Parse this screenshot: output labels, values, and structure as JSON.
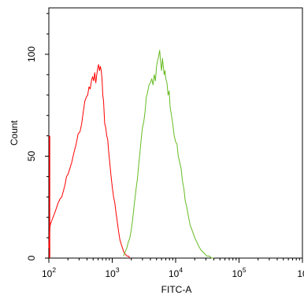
{
  "chart_data": {
    "type": "line",
    "title": "",
    "xlabel": "FITC-A",
    "ylabel": "Count",
    "x_scale": "log",
    "xlim": [
      100,
      1000000
    ],
    "ylim": [
      0,
      135
    ],
    "grid": false,
    "y_ticks": [
      0,
      50,
      100
    ],
    "x_ticks": [
      {
        "base": "10",
        "exp": "2"
      },
      {
        "base": "10",
        "exp": "3"
      },
      {
        "base": "10",
        "exp": "4"
      },
      {
        "base": "10",
        "exp": "5"
      },
      {
        "base": "10",
        "exp": ""
      }
    ],
    "series": [
      {
        "color": "#ff0000",
        "x": [
          100,
          102,
          105,
          110,
          120,
          130,
          140,
          150,
          160,
          170,
          180,
          190,
          200,
          215,
          230,
          250,
          270,
          290,
          310,
          330,
          350,
          370,
          390,
          410,
          430,
          450,
          470,
          490,
          510,
          530,
          550,
          570,
          590,
          610,
          630,
          650,
          670,
          690,
          710,
          730,
          760,
          790,
          820,
          850,
          880,
          920,
          960,
          1000,
          1050,
          1100,
          1150,
          1200,
          1260,
          1320,
          1380,
          1450,
          1520,
          1600,
          1700,
          1800,
          1900
        ],
        "values": [
          5,
          12,
          16,
          18,
          21,
          24,
          27,
          29,
          30,
          33,
          36,
          40,
          41,
          44,
          47,
          52,
          56,
          61,
          62,
          66,
          72,
          77,
          79,
          80,
          84,
          83,
          87,
          89,
          87,
          91,
          86,
          90,
          93,
          95,
          92,
          94,
          92,
          88,
          80,
          77,
          66,
          64,
          60,
          58,
          52,
          46,
          40,
          35,
          30,
          27,
          22,
          18,
          13,
          9,
          7,
          5,
          3,
          2,
          1,
          1,
          0
        ]
      },
      {
        "color": "#66bb22",
        "x": [
          1500,
          1600,
          1700,
          1800,
          1900,
          2000,
          2100,
          2200,
          2300,
          2400,
          2500,
          2600,
          2700,
          2800,
          2900,
          3000,
          3150,
          3300,
          3450,
          3600,
          3800,
          4000,
          4200,
          4400,
          4600,
          4800,
          5000,
          5200,
          5400,
          5600,
          5800,
          6000,
          6200,
          6400,
          6600,
          6800,
          7000,
          7300,
          7600,
          7900,
          8200,
          8600,
          9000,
          9500,
          10000,
          10500,
          11000,
          11600,
          12200,
          12800,
          13500,
          14200,
          15000,
          16000,
          17000,
          18000,
          19000,
          20000,
          21500,
          23000,
          25000,
          27000,
          29000,
          31000,
          34000,
          37000,
          40000
        ],
        "values": [
          1,
          3,
          5,
          8,
          10,
          14,
          19,
          25,
          30,
          35,
          39,
          45,
          50,
          55,
          60,
          64,
          67,
          72,
          79,
          81,
          85,
          86,
          88,
          85,
          90,
          87,
          94,
          97,
          99,
          102,
          96,
          92,
          98,
          94,
          90,
          92,
          88,
          86,
          80,
          82,
          74,
          70,
          66,
          60,
          57,
          56,
          50,
          47,
          44,
          38,
          34,
          28,
          25,
          20,
          16,
          14,
          12,
          10,
          8,
          6,
          4,
          3,
          2,
          1,
          1,
          0,
          0
        ]
      }
    ]
  }
}
